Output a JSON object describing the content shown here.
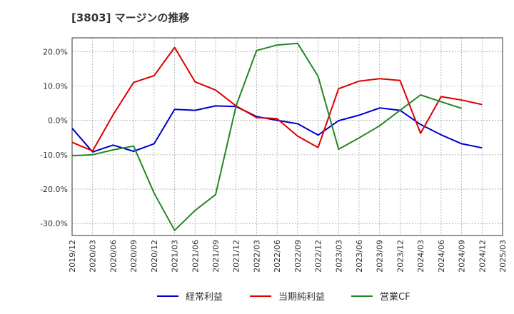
{
  "chart_data": {
    "type": "line",
    "title": "[3803]  マージンの推移",
    "x": [
      "2019/12",
      "2020/03",
      "2020/06",
      "2020/09",
      "2020/12",
      "2021/03",
      "2021/06",
      "2021/09",
      "2021/12",
      "2022/03",
      "2022/06",
      "2022/09",
      "2022/12",
      "2023/03",
      "2023/06",
      "2023/09",
      "2023/12",
      "2024/03",
      "2024/06",
      "2024/09",
      "2024/12",
      "2025/03"
    ],
    "ylim": [
      -33.5,
      24
    ],
    "yticks": [
      20,
      10,
      0,
      -10,
      -20,
      -30
    ],
    "ytick_labels": [
      "20.0%",
      "10.0%",
      "0.0%",
      "-10.0%",
      "-20.0%",
      "-30.0%"
    ],
    "grid": true,
    "legend": "bottom",
    "series": [
      {
        "name": "経常利益",
        "color": "#0000cc",
        "values": [
          -2.3,
          -9.2,
          -7.2,
          -9.0,
          -6.8,
          3.2,
          2.9,
          4.2,
          4.0,
          1.1,
          0.0,
          -1.0,
          -4.3,
          -0.1,
          1.5,
          3.6,
          2.9,
          -1.2,
          -4.2,
          -6.8,
          -8.0,
          null
        ]
      },
      {
        "name": "当期純利益",
        "color": "#dd0000",
        "values": [
          -6.4,
          -8.9,
          1.6,
          11.0,
          13.0,
          21.2,
          11.2,
          8.8,
          4.2,
          0.8,
          0.5,
          -4.6,
          -7.9,
          9.2,
          11.4,
          12.1,
          11.6,
          -3.8,
          6.9,
          5.9,
          4.6,
          null
        ]
      },
      {
        "name": "営業CF",
        "color": "#228822",
        "values": [
          -10.3,
          -10.0,
          -8.6,
          -7.5,
          -21.2,
          -32.0,
          -26.2,
          -21.6,
          4.2,
          20.3,
          21.9,
          22.4,
          12.8,
          -8.4,
          -5.1,
          -1.6,
          2.9,
          7.4,
          5.4,
          3.5,
          null,
          null
        ]
      }
    ]
  }
}
